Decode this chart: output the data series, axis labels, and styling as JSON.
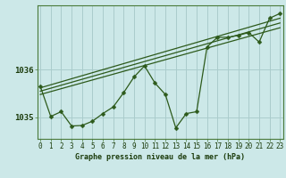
{
  "title": "Graphe pression niveau de la mer (hPa)",
  "bg_color": "#cce8e8",
  "grid_color": "#aacccc",
  "line_color": "#2d5a1b",
  "ytick_labels": [
    "1035",
    "1036"
  ],
  "yticks": [
    1035.0,
    1036.0
  ],
  "ylim": [
    1034.55,
    1037.35
  ],
  "xlim": [
    -0.3,
    23.3
  ],
  "hours": [
    0,
    1,
    2,
    3,
    4,
    5,
    6,
    7,
    8,
    9,
    10,
    11,
    12,
    13,
    14,
    15,
    16,
    17,
    18,
    19,
    20,
    21,
    22,
    23
  ],
  "zigzag": [
    1035.65,
    1035.02,
    1035.12,
    1034.82,
    1034.83,
    1034.92,
    1035.08,
    1035.22,
    1035.52,
    1035.85,
    1036.08,
    1035.72,
    1035.48,
    1034.78,
    1035.08,
    1035.12,
    1036.48,
    1036.68,
    1036.68,
    1036.72,
    1036.78,
    1036.58,
    1037.08,
    1037.18
  ],
  "trend_lines": [
    {
      "x0": 0,
      "y0": 1035.62,
      "x1": 23,
      "y1": 1037.08
    },
    {
      "x0": 0,
      "y0": 1035.55,
      "x1": 23,
      "y1": 1036.98
    },
    {
      "x0": 0,
      "y0": 1035.48,
      "x1": 23,
      "y1": 1036.88
    }
  ],
  "x_labels": [
    "0",
    "1",
    "2",
    "3",
    "4",
    "5",
    "6",
    "7",
    "8",
    "9",
    "10",
    "11",
    "12",
    "13",
    "14",
    "15",
    "16",
    "17",
    "18",
    "19",
    "20",
    "21",
    "22",
    "23"
  ],
  "marker_size": 2.5,
  "linewidth": 0.9,
  "title_fontsize": 6.0,
  "tick_fontsize": 5.5,
  "ytick_fontsize": 6.5
}
